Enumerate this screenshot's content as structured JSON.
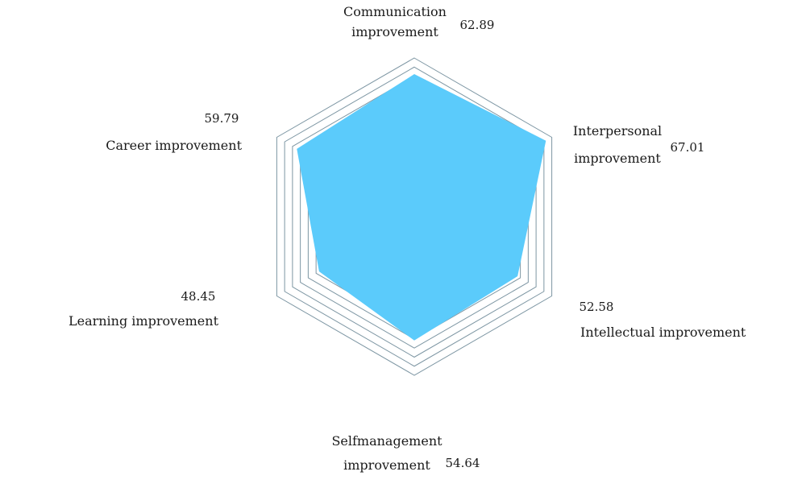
{
  "chart_data": {
    "type": "radar",
    "title": "",
    "grid": true,
    "range": [
      0,
      70
    ],
    "rings": [
      42,
      46,
      50,
      54,
      58,
      62,
      66,
      70
    ],
    "colors": {
      "fill": "#5bcbfb",
      "grid": "#7d96a3"
    },
    "axes": [
      {
        "label_lines": [
          "Communication",
          "improvement"
        ],
        "value": 62.89
      },
      {
        "label_lines": [
          "Interpersonal",
          "improvement"
        ],
        "value": 67.01
      },
      {
        "label_lines": [
          "Intellectual improvement"
        ],
        "value": 52.58
      },
      {
        "label_lines": [
          "Selfmanagement",
          "improvement"
        ],
        "value": 54.64
      },
      {
        "label_lines": [
          "Learning improvement"
        ],
        "value": 48.45
      },
      {
        "label_lines": [
          "Career improvement"
        ],
        "value": 59.79
      }
    ]
  }
}
